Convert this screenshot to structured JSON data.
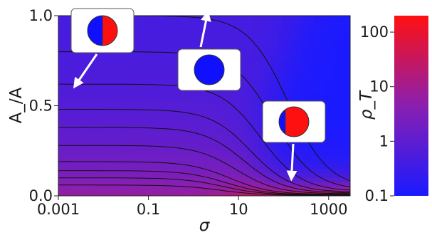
{
  "chart_data": {
    "type": "heatmap",
    "title": "",
    "xlabel": "σ",
    "ylabel": "A_/A",
    "x_scale": "log",
    "xlim": [
      0.001,
      3000
    ],
    "ylim": [
      0.0,
      1.0
    ],
    "x_ticks": [
      {
        "value": 0.001,
        "label": "0.001"
      },
      {
        "value": 0.1,
        "label": "0.1"
      },
      {
        "value": 10,
        "label": "10"
      },
      {
        "value": 1000,
        "label": "1000"
      }
    ],
    "y_ticks": [
      {
        "value": 0.0,
        "label": "0.0"
      },
      {
        "value": 0.5,
        "label": "0.5"
      },
      {
        "value": 1.0,
        "label": "1.0"
      }
    ],
    "colorbar": {
      "label": "ρ_T",
      "scale": "log",
      "range": [
        0.1,
        200
      ],
      "ticks": [
        {
          "value": 100,
          "label": "100"
        },
        {
          "value": 10,
          "label": "10"
        },
        {
          "value": 1,
          "label": "1"
        },
        {
          "value": 0.1,
          "label": "0.1"
        }
      ],
      "colors": {
        "low": "#1a1aff",
        "mid": "#8a1fb0",
        "high": "#ff1010"
      }
    },
    "contour_levels": [
      0.06,
      0.1,
      0.14,
      0.19,
      0.28,
      0.38,
      0.48,
      0.62,
      0.8,
      1.0
    ],
    "annotations": [
      {
        "name": "half-split",
        "glyph": "circle half blue / half red",
        "arrow_to_x": 0.0025,
        "arrow_to_y": 0.62
      },
      {
        "name": "all-blue",
        "glyph": "circle fully blue",
        "arrow_to_x": 2.0,
        "arrow_to_y": 1.0
      },
      {
        "name": "mostly-red",
        "glyph": "circle thin blue / red",
        "arrow_to_x": 150,
        "arrow_to_y": 0.11
      }
    ],
    "grid": false,
    "legend": "none"
  }
}
